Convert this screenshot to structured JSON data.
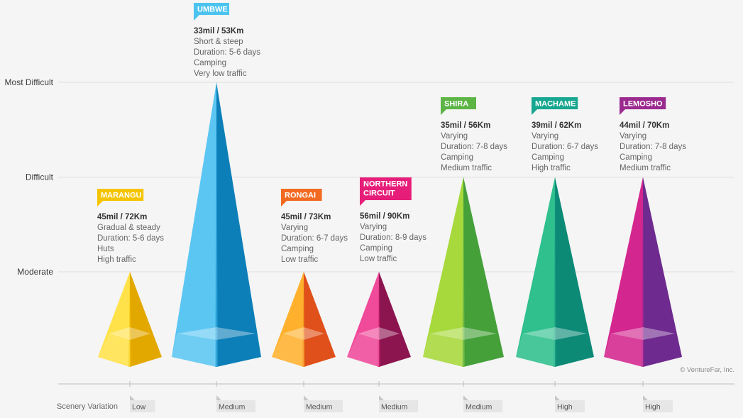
{
  "chart_data": {
    "type": "bar",
    "y_levels": [
      "Moderate",
      "Difficult",
      "Most Difficult"
    ],
    "x_title": "Scenery Variation",
    "copyright": "© VentureFar, Inc.",
    "routes": [
      {
        "name": "MARANGU",
        "name_lines": [
          "MARANGU"
        ],
        "difficulty": 1.0,
        "distance": "45mil / 72Km",
        "details": [
          "Gradual & steady",
          "Duration: 5-6 days",
          "Huts",
          "High traffic"
        ],
        "scenery": "Low",
        "color": "#f5c400",
        "light": "#ffe24a",
        "dark": "#e3a800",
        "tag_color": "#f5c400"
      },
      {
        "name": "UMBWE",
        "name_lines": [
          "UMBWE"
        ],
        "difficulty": 3.0,
        "distance": "33mil / 53Km",
        "details": [
          "Short & steep",
          "Duration: 5-6 days",
          "Camping",
          "Very low traffic"
        ],
        "scenery": "Medium",
        "color": "#2aa7dc",
        "light": "#5cc6f2",
        "dark": "#0d7fb8",
        "tag_color": "#4cc3ef"
      },
      {
        "name": "RONGAI",
        "name_lines": [
          "RONGAI"
        ],
        "difficulty": 1.0,
        "distance": "45mil / 73Km",
        "details": [
          "Varying",
          "Duration: 6-7 days",
          "Camping",
          "Low traffic"
        ],
        "scenery": "Medium",
        "color": "#f28a1d",
        "light": "#ffb12e",
        "dark": "#e0501a",
        "tag_color": "#f26a21"
      },
      {
        "name": "NORTHERN CIRCUIT",
        "name_lines": [
          "NORTHERN",
          "CIRCUIT"
        ],
        "difficulty": 1.0,
        "distance": "56mil / 90Km",
        "details": [
          "Varying",
          "Duration: 8-9 days",
          "Camping",
          "Low traffic"
        ],
        "scenery": "Medium",
        "color": "#e0287a",
        "light": "#f04a9a",
        "dark": "#8c1550",
        "tag_color": "#e61e79"
      },
      {
        "name": "SHIRA",
        "name_lines": [
          "SHIRA"
        ],
        "difficulty": 2.0,
        "distance": "35mil / 56Km",
        "details": [
          "Varying",
          "Duration: 7-8 days",
          "Camping",
          "Medium traffic"
        ],
        "scenery": "Medium",
        "color": "#7cc242",
        "light": "#a8d93c",
        "dark": "#45a03a",
        "tag_color": "#5cb445"
      },
      {
        "name": "MACHAME",
        "name_lines": [
          "MACHAME"
        ],
        "difficulty": 2.0,
        "distance": "39mil / 62Km",
        "details": [
          "Varying",
          "Duration: 6-7 days",
          "Camping",
          "High traffic"
        ],
        "scenery": "High",
        "color": "#1fa886",
        "light": "#2fc08e",
        "dark": "#0c8a76",
        "tag_color": "#17a68f"
      },
      {
        "name": "LEMOSHO",
        "name_lines": [
          "LEMOSHO"
        ],
        "difficulty": 2.0,
        "distance": "44mil / 70Km",
        "details": [
          "Varying",
          "Duration: 7-8 days",
          "Camping",
          "Medium traffic"
        ],
        "scenery": "High",
        "color": "#a7288f",
        "light": "#d3268f",
        "dark": "#6e2a8e",
        "tag_color": "#9b2a8f"
      }
    ]
  }
}
